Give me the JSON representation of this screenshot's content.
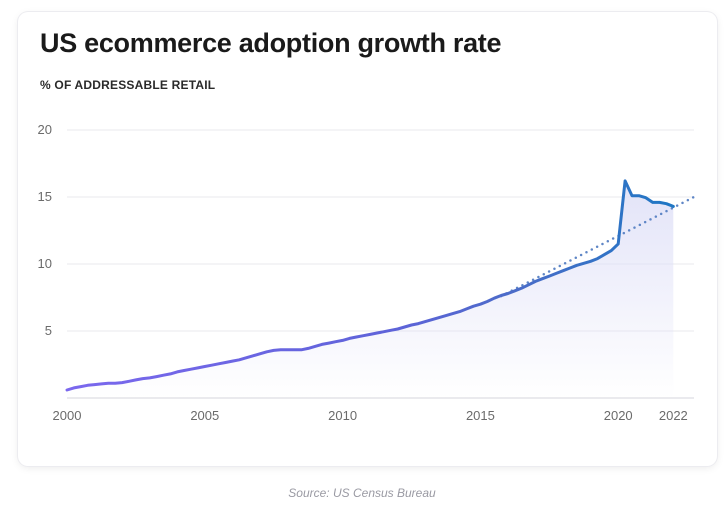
{
  "chart_data": {
    "type": "line",
    "title": "US ecommerce adoption growth rate",
    "subtitle": "% OF ADDRESSABLE RETAIL",
    "source": "Source: US Census Bureau",
    "xlim": [
      2000,
      2022.75
    ],
    "ylim": [
      0,
      20
    ],
    "grid": true,
    "x_ticks": [
      2000,
      2005,
      2010,
      2015,
      2020,
      2022
    ],
    "y_ticks": [
      5,
      10,
      15,
      20
    ],
    "colors": {
      "purple": "#7b68ee",
      "blue": "#1f77c4",
      "trend": "#5f86c6",
      "fill": "#dfe0f7"
    },
    "series": [
      {
        "x": [
          2000.0,
          2000.25,
          2000.5,
          2000.75,
          2001.0,
          2001.25,
          2001.5,
          2001.75,
          2002.0,
          2002.25,
          2002.5,
          2002.75,
          2003.0,
          2003.25,
          2003.5,
          2003.75,
          2004.0,
          2004.25,
          2004.5,
          2004.75,
          2005.0,
          2005.25,
          2005.5,
          2005.75,
          2006.0,
          2006.25,
          2006.5,
          2006.75,
          2007.0,
          2007.25,
          2007.5,
          2007.75,
          2008.0,
          2008.25,
          2008.5,
          2008.75,
          2009.0,
          2009.25,
          2009.5,
          2009.75,
          2010.0,
          2010.25,
          2010.5,
          2010.75,
          2011.0,
          2011.25,
          2011.5,
          2011.75,
          2012.0,
          2012.25,
          2012.5,
          2012.75,
          2013.0,
          2013.25,
          2013.5,
          2013.75,
          2014.0,
          2014.25,
          2014.5,
          2014.75,
          2015.0,
          2015.25,
          2015.5,
          2015.75,
          2016.0,
          2016.25,
          2016.5,
          2016.75,
          2017.0,
          2017.25,
          2017.5,
          2017.75,
          2018.0,
          2018.25,
          2018.5,
          2018.75,
          2019.0,
          2019.25,
          2019.5,
          2019.75,
          2020.0,
          2020.25,
          2020.5,
          2020.75,
          2021.0,
          2021.25,
          2021.5,
          2021.75,
          2022.0
        ],
        "y": [
          0.6,
          0.75,
          0.85,
          0.95,
          1.0,
          1.05,
          1.1,
          1.1,
          1.15,
          1.25,
          1.35,
          1.45,
          1.5,
          1.6,
          1.7,
          1.8,
          1.95,
          2.05,
          2.15,
          2.25,
          2.35,
          2.45,
          2.55,
          2.65,
          2.75,
          2.85,
          3.0,
          3.15,
          3.3,
          3.45,
          3.55,
          3.6,
          3.6,
          3.6,
          3.6,
          3.7,
          3.85,
          4.0,
          4.1,
          4.2,
          4.3,
          4.45,
          4.55,
          4.65,
          4.75,
          4.85,
          4.95,
          5.05,
          5.15,
          5.3,
          5.45,
          5.55,
          5.7,
          5.85,
          6.0,
          6.15,
          6.3,
          6.45,
          6.65,
          6.85,
          7.0,
          7.2,
          7.45,
          7.65,
          7.8,
          8.0,
          8.2,
          8.45,
          8.7,
          8.9,
          9.1,
          9.3,
          9.5,
          9.7,
          9.9,
          10.05,
          10.2,
          10.4,
          10.7,
          11.0,
          11.5,
          16.2,
          15.1,
          15.1,
          14.95,
          14.6,
          14.6,
          14.5,
          14.3
        ]
      },
      {
        "style": "dotted",
        "x": [
          2015.75,
          2022.75
        ],
        "y": [
          7.6,
          15.0
        ]
      }
    ]
  }
}
